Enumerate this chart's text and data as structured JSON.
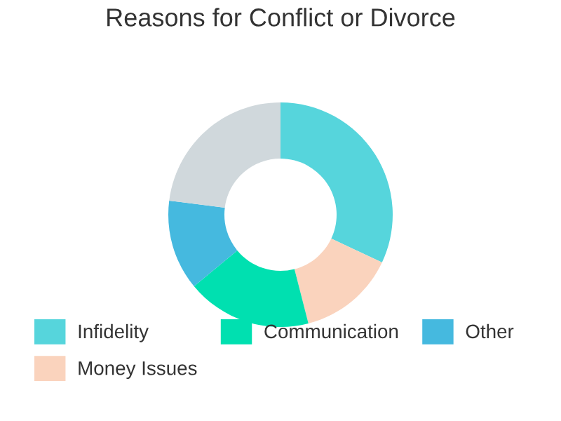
{
  "chart_data": {
    "type": "donut",
    "title": "Reasons for Conflict or Divorce",
    "categories": [
      "Infidelity",
      "Money Issues",
      "Communication",
      "Other",
      null
    ],
    "values": [
      32,
      14,
      18,
      13,
      23
    ],
    "colors": [
      "#56d5dc",
      "#fad3bd",
      "#00e0b0",
      "#45b9df",
      "#d0d8dc"
    ],
    "legend": "bottom"
  }
}
